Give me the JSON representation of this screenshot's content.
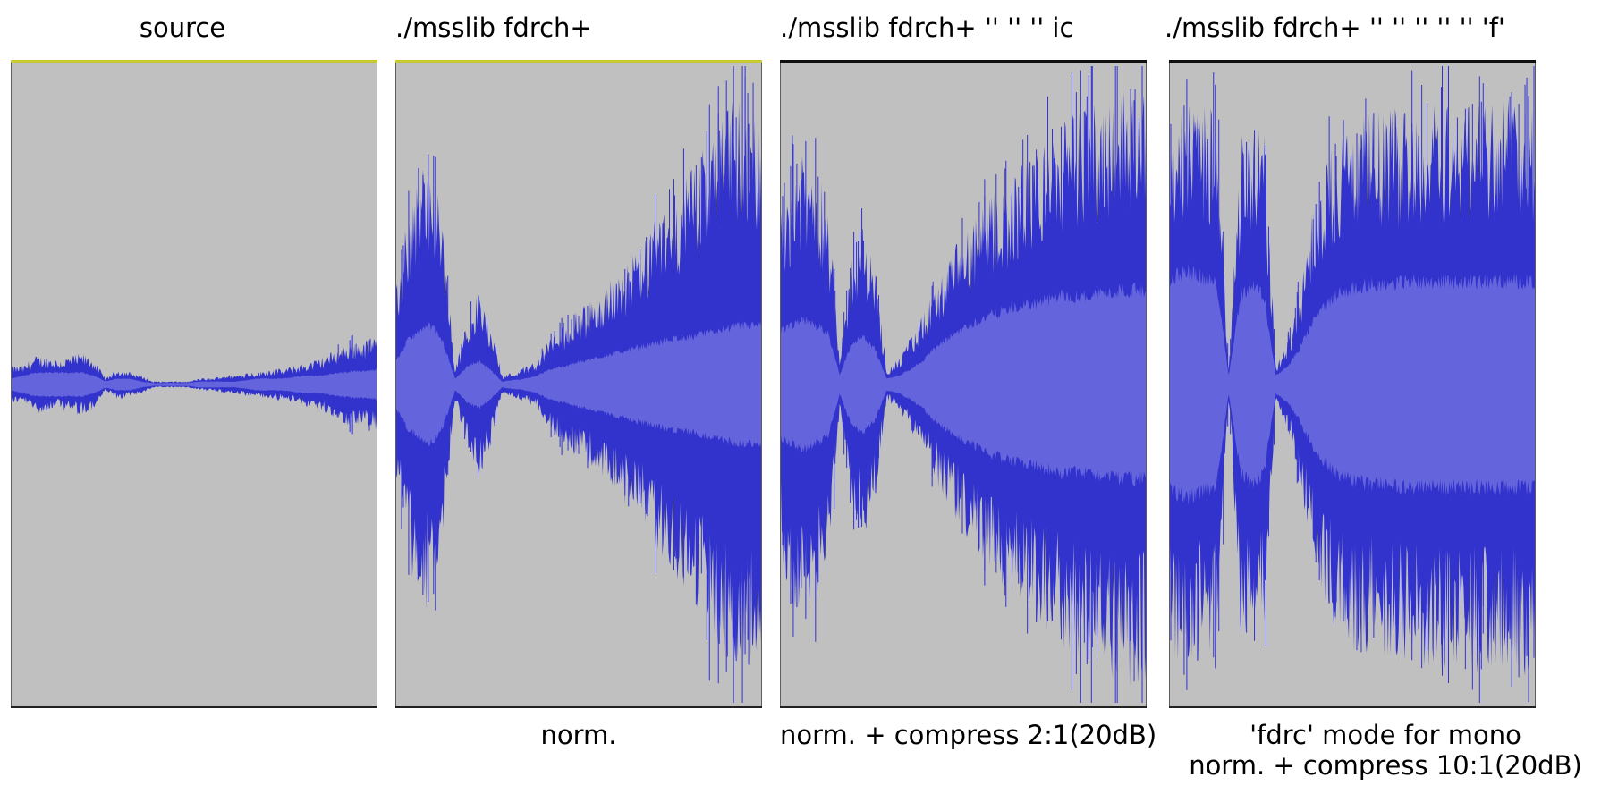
{
  "colors": {
    "panel_background": "#c0c0c0",
    "waveform_peak": "#3232cd",
    "waveform_rms": "#6464dc",
    "top_line_yellow": "#c8c832",
    "top_line_dark": "#101010"
  },
  "panels": [
    {
      "title": "source",
      "caption": [],
      "top_line": "yellow",
      "waveform": {
        "envelope_peak": [
          0.06,
          0.06,
          0.09,
          0.09,
          0.08,
          0.09,
          0.1,
          0.08,
          0.02,
          0.05,
          0.04,
          0.03,
          0.01,
          0.01,
          0.01,
          0.01,
          0.02,
          0.02,
          0.03,
          0.03,
          0.04,
          0.04,
          0.05,
          0.05,
          0.06,
          0.07,
          0.08,
          0.1,
          0.12,
          0.14,
          0.14,
          0.15
        ],
        "envelope_rms": [
          0.02,
          0.03,
          0.04,
          0.04,
          0.04,
          0.04,
          0.04,
          0.03,
          0.01,
          0.02,
          0.02,
          0.01,
          0.005,
          0.005,
          0.005,
          0.005,
          0.01,
          0.01,
          0.01,
          0.01,
          0.015,
          0.02,
          0.02,
          0.02,
          0.025,
          0.03,
          0.03,
          0.035,
          0.04,
          0.045,
          0.045,
          0.05
        ]
      }
    },
    {
      "title": "./msslib fdrch+",
      "caption": [
        "norm."
      ],
      "top_line": "yellow",
      "waveform": {
        "envelope_peak": [
          0.3,
          0.55,
          0.7,
          0.72,
          0.5,
          0.05,
          0.2,
          0.3,
          0.2,
          0.03,
          0.04,
          0.06,
          0.08,
          0.15,
          0.18,
          0.22,
          0.25,
          0.28,
          0.32,
          0.36,
          0.4,
          0.45,
          0.52,
          0.58,
          0.62,
          0.68,
          0.74,
          0.8,
          0.86,
          0.92,
          0.88,
          0.85
        ],
        "envelope_rms": [
          0.08,
          0.15,
          0.18,
          0.2,
          0.14,
          0.02,
          0.06,
          0.08,
          0.05,
          0.01,
          0.015,
          0.02,
          0.03,
          0.05,
          0.06,
          0.07,
          0.08,
          0.09,
          0.1,
          0.11,
          0.12,
          0.13,
          0.14,
          0.15,
          0.16,
          0.16,
          0.17,
          0.18,
          0.19,
          0.2,
          0.2,
          0.2
        ]
      }
    },
    {
      "title": "./msslib fdrch+ '' '' '' ic",
      "caption": [
        "norm. + compress 2:1(20dB)"
      ],
      "top_line": "dark",
      "waveform": {
        "envelope_peak": [
          0.55,
          0.7,
          0.72,
          0.7,
          0.6,
          0.08,
          0.4,
          0.5,
          0.38,
          0.05,
          0.08,
          0.15,
          0.22,
          0.3,
          0.38,
          0.45,
          0.5,
          0.55,
          0.6,
          0.64,
          0.68,
          0.72,
          0.76,
          0.8,
          0.84,
          0.87,
          0.9,
          0.92,
          0.94,
          0.96,
          0.95,
          0.94
        ],
        "envelope_rms": [
          0.18,
          0.2,
          0.22,
          0.2,
          0.18,
          0.03,
          0.14,
          0.16,
          0.12,
          0.02,
          0.03,
          0.05,
          0.08,
          0.12,
          0.15,
          0.18,
          0.2,
          0.22,
          0.24,
          0.25,
          0.26,
          0.27,
          0.28,
          0.29,
          0.3,
          0.3,
          0.3,
          0.31,
          0.31,
          0.32,
          0.32,
          0.32
        ]
      }
    },
    {
      "title": "./msslib fdrch+ '' '' '' '' '' 'f'",
      "caption": [
        "'fdrc' mode for mono",
        "norm. + compress 10:1(20dB)"
      ],
      "top_line": "dark",
      "waveform": {
        "envelope_peak": [
          0.85,
          0.9,
          0.9,
          0.88,
          0.86,
          0.05,
          0.8,
          0.86,
          0.8,
          0.06,
          0.14,
          0.3,
          0.55,
          0.7,
          0.78,
          0.82,
          0.85,
          0.86,
          0.87,
          0.88,
          0.88,
          0.89,
          0.89,
          0.9,
          0.9,
          0.91,
          0.91,
          0.92,
          0.92,
          0.92,
          0.92,
          0.92
        ],
        "envelope_rms": [
          0.35,
          0.38,
          0.38,
          0.36,
          0.34,
          0.03,
          0.3,
          0.34,
          0.3,
          0.03,
          0.06,
          0.12,
          0.2,
          0.26,
          0.3,
          0.32,
          0.33,
          0.34,
          0.34,
          0.34,
          0.35,
          0.35,
          0.35,
          0.35,
          0.35,
          0.35,
          0.35,
          0.35,
          0.35,
          0.35,
          0.35,
          0.35
        ]
      }
    }
  ]
}
